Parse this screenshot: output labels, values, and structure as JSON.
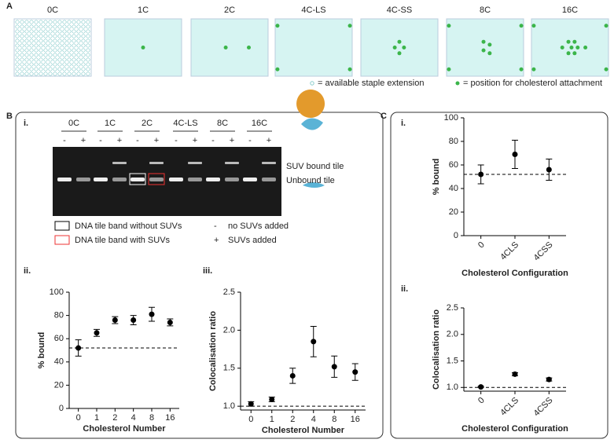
{
  "panel_a": {
    "letter": "A",
    "tiles": [
      "0C",
      "1C",
      "2C",
      "4C-LS",
      "4C-SS",
      "8C",
      "16C"
    ],
    "legend": [
      "= available staple extension",
      "= position for cholesterol attachment"
    ]
  },
  "panel_b": {
    "letter": "B",
    "sub": [
      "i.",
      "ii.",
      "iii."
    ]
  },
  "panel_c": {
    "letter": "C",
    "sub": [
      "i.",
      "ii."
    ]
  },
  "gel": {
    "lanes": [
      "0C",
      "1C",
      "2C",
      "4C-LS",
      "8C",
      "16C"
    ],
    "signs": [
      "-",
      "+"
    ],
    "labels": [
      "SUV bound tile",
      "Unbound tile"
    ],
    "legend": [
      "DNA tile band without SUVs",
      "DNA tile band with SUVs"
    ],
    "key": [
      [
        "-",
        "no SUVs added"
      ],
      [
        "+",
        "SUVs added"
      ]
    ]
  },
  "chart_data": [
    {
      "type": "errorbar",
      "y_label": "% bound",
      "x_label": "Cholesterol Number",
      "categories": [
        "0",
        "1",
        "2",
        "4",
        "8",
        "16"
      ],
      "values": [
        52,
        65,
        76,
        76,
        81,
        74
      ],
      "errors": [
        7,
        3,
        3,
        4,
        6,
        3
      ],
      "reference_line": 52,
      "ylim": [
        0,
        100
      ],
      "yticks": [
        0,
        20,
        40,
        60,
        80,
        100
      ],
      "color": "#000000"
    },
    {
      "type": "errorbar",
      "y_label": "Colocalisation ratio",
      "x_label": "Cholesterol Number",
      "categories": [
        "0",
        "1",
        "2",
        "4",
        "8",
        "16"
      ],
      "values": [
        1.03,
        1.09,
        1.4,
        1.85,
        1.52,
        1.45
      ],
      "errors": [
        0.03,
        0.03,
        0.1,
        0.2,
        0.14,
        0.11
      ],
      "reference_line": 1,
      "ylim": [
        0.95,
        2.5
      ],
      "yticks": [
        {
          "value": 1,
          "label": "1.0"
        },
        1.5,
        {
          "value": 2,
          "label": "2.0"
        },
        2.5
      ],
      "color": "#000000"
    },
    {
      "type": "errorbar",
      "y_label": "% bound",
      "x_label": "Cholesterol Configuration",
      "categories": [
        "0",
        "4CLS",
        "4CSS"
      ],
      "values": [
        52,
        69,
        56
      ],
      "errors": [
        8,
        12,
        9
      ],
      "reference_line": 52,
      "ylim": [
        0,
        100
      ],
      "yticks": [
        0,
        20,
        40,
        60,
        80,
        100
      ],
      "color": "#000000",
      "rotate_xlabels": true
    },
    {
      "type": "errorbar",
      "y_label": "Colocalisation ratio",
      "x_label": "Cholesterol Configuration",
      "categories": [
        "0",
        "4CLS",
        "4CSS"
      ],
      "values": [
        1.01,
        1.25,
        1.15
      ],
      "errors": [
        0.01,
        0.03,
        0.03
      ],
      "reference_line": 1,
      "ylim": [
        0.93,
        2.5
      ],
      "yticks": [
        {
          "value": 1,
          "label": "1.0"
        },
        1.5,
        {
          "value": 2,
          "label": "2.0"
        },
        2.5
      ],
      "color": "#000000",
      "rotate_xlabels": true
    }
  ]
}
